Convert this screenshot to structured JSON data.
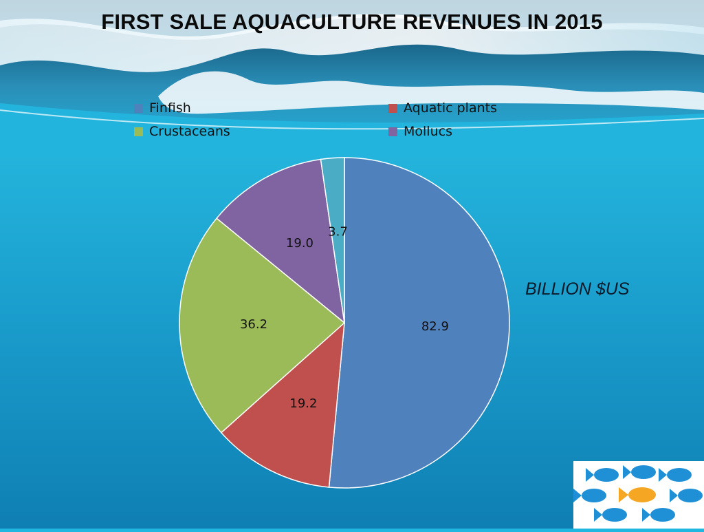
{
  "slide": {
    "title": "FIRST SALE AQUACULTURE REVENUES IN 2015",
    "unit_label": "BILLION $US"
  },
  "colors": {
    "finfish": "#4f81bd",
    "aquatic_plants": "#c0504d",
    "crustaceans": "#9bbb59",
    "mollucs": "#8064a2",
    "other": "#4bacc6",
    "fish_blue": "#1f8fd6",
    "fish_orange": "#f5a623"
  },
  "chart_data": {
    "type": "pie",
    "title": "FIRST SALE AQUACULTURE REVENUES IN 2015",
    "unit": "BILLION $US",
    "legend_position": "top",
    "legend": [
      "Finfish",
      "Aquatic plants",
      "Crustaceans",
      "Mollucs"
    ],
    "slices": [
      {
        "name": "Finfish",
        "value": 82.9,
        "label": "82.9",
        "color": "#4f81bd"
      },
      {
        "name": "Aquatic plants",
        "value": 19.2,
        "label": "19.2",
        "color": "#c0504d"
      },
      {
        "name": "Crustaceans",
        "value": 36.2,
        "label": "36.2",
        "color": "#9bbb59"
      },
      {
        "name": "Mollucs",
        "value": 19.0,
        "label": "19.0",
        "color": "#8064a2"
      },
      {
        "name": "",
        "value": 3.7,
        "label": "3.7",
        "color": "#4bacc6"
      }
    ]
  },
  "logo": {
    "icon": "fish-school-logo"
  }
}
